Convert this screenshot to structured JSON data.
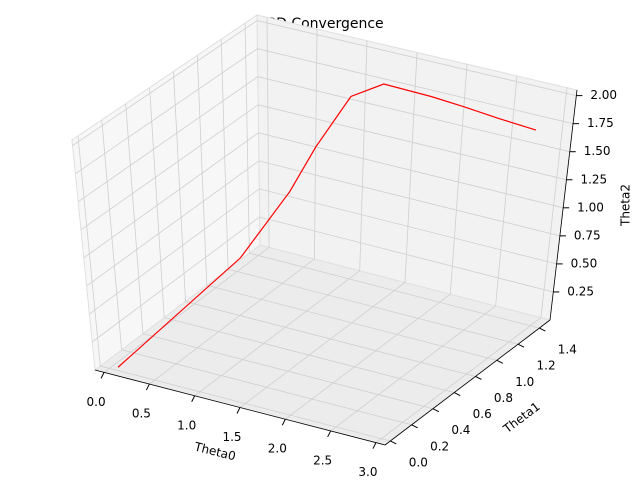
{
  "chart_data": {
    "type": "line3d",
    "title": "SGD Convergence",
    "xlabel": "Theta0",
    "ylabel": "Theta1",
    "zlabel": "Theta2",
    "x": [
      0.06,
      0.9,
      1.07,
      1.16,
      1.25,
      1.54,
      1.97,
      2.25,
      2.58,
      2.88
    ],
    "y": [
      0.03,
      0.49,
      0.79,
      0.94,
      1.16,
      1.19,
      1.23,
      1.27,
      1.31,
      1.37
    ],
    "z": [
      0.0,
      0.82,
      1.23,
      1.54,
      1.85,
      2.0,
      1.95,
      1.89,
      1.82,
      1.74
    ],
    "color": "#ff0000",
    "xlim": [
      -0.1,
      3.1
    ],
    "ylim": [
      -0.05,
      1.5
    ],
    "zlim": [
      0.0,
      2.05
    ],
    "xticks": [
      {
        "value": 0,
        "label": "0.0"
      },
      0.5,
      {
        "value": 1,
        "label": "1.0"
      },
      1.5,
      {
        "value": 2,
        "label": "2.0"
      },
      2.5,
      {
        "value": 3,
        "label": "3.0"
      }
    ],
    "yticks": [
      {
        "value": 0,
        "label": "0.0"
      },
      0.2,
      0.4,
      0.6,
      0.8,
      {
        "value": 1,
        "label": "1.0"
      },
      1.2,
      1.4
    ],
    "zticks": [
      0.25,
      {
        "value": 0.5,
        "label": "0.50"
      },
      0.75,
      {
        "value": 1,
        "label": "1.00"
      },
      1.25,
      {
        "value": 1.5,
        "label": "1.50"
      },
      1.75,
      {
        "value": 2,
        "label": "2.00"
      }
    ],
    "grid": true
  }
}
